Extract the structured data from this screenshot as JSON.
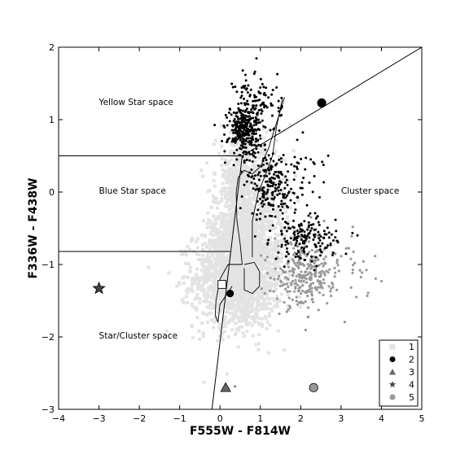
{
  "chart_data": {
    "type": "scatter",
    "xlabel": "F555W - F814W",
    "ylabel": "F336W - F438W",
    "xlim": [
      -4,
      5
    ],
    "ylim": [
      -3,
      2
    ],
    "x_ticks": [
      -4,
      -3,
      -2,
      -1,
      0,
      1,
      2,
      3,
      4,
      5
    ],
    "y_ticks": [
      -3,
      -2,
      -1,
      0,
      1,
      2
    ],
    "x_tick_labels": [
      "−4",
      "−3",
      "−2",
      "−1",
      "0",
      "1",
      "2",
      "3",
      "4",
      "5"
    ],
    "y_tick_labels": [
      "−3",
      "−2",
      "−1",
      "0",
      "1",
      "2"
    ],
    "grid": false,
    "legend_position": "bottom-right",
    "legend": [
      {
        "label": "1",
        "marker": "square",
        "color": "#e3e3e3"
      },
      {
        "label": "2",
        "marker": "circle",
        "color": "#000000"
      },
      {
        "label": "3",
        "marker": "triangle",
        "color": "#666666"
      },
      {
        "label": "4",
        "marker": "star",
        "color": "#444444"
      },
      {
        "label": "5",
        "marker": "circle",
        "color": "#999999"
      }
    ],
    "region_labels": [
      {
        "text": "Yellow Star space",
        "x": -3.0,
        "y": 1.25
      },
      {
        "text": "Blue Star space",
        "x": -3.0,
        "y": 0.02
      },
      {
        "text": "Cluster space",
        "x": 3.0,
        "y": 0.02
      },
      {
        "text": "Star/Cluster space",
        "x": -3.0,
        "y": -1.98
      }
    ],
    "boundary_lines": [
      {
        "name": "yellow-blue-boundary",
        "points": [
          [
            -4,
            0.5
          ],
          [
            0.55,
            0.5
          ]
        ]
      },
      {
        "name": "blue-starcluster-boundary",
        "points": [
          [
            -4,
            -0.82
          ],
          [
            0.25,
            -0.82
          ]
        ]
      },
      {
        "name": "star-cluster-diagonal",
        "points": [
          [
            -0.2,
            -3.0
          ],
          [
            0.55,
            0.5
          ]
        ]
      },
      {
        "name": "cluster-upper-boundary",
        "points": [
          [
            0.55,
            0.5
          ],
          [
            5,
            2
          ]
        ]
      }
    ],
    "series": [
      {
        "name": "1",
        "marker": "square",
        "color": "#e3e3e3",
        "clouds": [
          {
            "cx": 0.45,
            "cy": -1.2,
            "sx": 0.55,
            "sy": 0.34,
            "n": 1500
          },
          {
            "cx": 0.55,
            "cy": -0.6,
            "sx": 0.42,
            "sy": 0.33,
            "n": 800
          },
          {
            "cx": 0.5,
            "cy": 0.15,
            "sx": 0.3,
            "sy": 0.32,
            "n": 450
          },
          {
            "cx": 1.1,
            "cy": -0.2,
            "sx": 0.35,
            "sy": 0.4,
            "n": 220
          }
        ]
      },
      {
        "name": "2",
        "marker": "dot",
        "color": "#000000",
        "clouds": [
          {
            "cx": 0.6,
            "cy": 0.85,
            "sx": 0.2,
            "sy": 0.18,
            "n": 300
          },
          {
            "cx": 0.95,
            "cy": 1.25,
            "sx": 0.3,
            "sy": 0.22,
            "n": 100
          },
          {
            "cx": 1.3,
            "cy": 0.05,
            "sx": 0.3,
            "sy": 0.22,
            "n": 180
          },
          {
            "cx": 2.1,
            "cy": -0.65,
            "sx": 0.4,
            "sy": 0.15,
            "n": 170
          },
          {
            "cx": 1.9,
            "cy": 0.3,
            "sx": 0.5,
            "sy": 0.3,
            "n": 40
          }
        ],
        "highlight": [
          {
            "x": 2.52,
            "y": 1.23,
            "size": "large"
          },
          {
            "x": 0.25,
            "y": -1.4,
            "size": "medium"
          }
        ]
      },
      {
        "name": "3",
        "marker": "triangle",
        "color": "#666666",
        "points": [
          {
            "x": 0.14,
            "y": -2.7
          },
          {
            "x": 0.37,
            "y": -2.68,
            "size": "small"
          }
        ]
      },
      {
        "name": "4",
        "marker": "star",
        "color": "#444444",
        "points": [
          {
            "x": -3.0,
            "y": -1.33
          }
        ]
      },
      {
        "name": "5",
        "marker": "circle",
        "color": "#999999",
        "clouds": [
          {
            "cx": 2.05,
            "cy": -1.15,
            "sx": 0.35,
            "sy": 0.22,
            "n": 220
          },
          {
            "cx": 2.7,
            "cy": -1.1,
            "sx": 0.5,
            "sy": 0.25,
            "n": 90
          }
        ],
        "points": [
          {
            "x": 2.32,
            "y": -2.7,
            "size": "large"
          }
        ]
      }
    ],
    "track_lines": [
      [
        [
          1.6,
          1.31
        ],
        [
          1.2,
          0.6
        ],
        [
          1.0,
          0.35
        ],
        [
          0.8,
          0.25
        ],
        [
          0.6,
          0.3
        ],
        [
          0.45,
          0.2
        ],
        [
          0.4,
          0.0
        ],
        [
          0.42,
          -0.4
        ],
        [
          0.5,
          -0.72
        ],
        [
          0.55,
          -1.0
        ]
      ],
      [
        [
          1.55,
          1.3
        ],
        [
          1.4,
          0.9
        ],
        [
          1.3,
          0.5
        ],
        [
          1.1,
          0.2
        ],
        [
          0.95,
          0.0
        ],
        [
          0.8,
          -0.4
        ],
        [
          0.8,
          -0.9
        ]
      ],
      [
        [
          0.55,
          -1.0
        ],
        [
          0.2,
          -1.0
        ],
        [
          0.0,
          -1.2
        ],
        [
          -0.1,
          -1.5
        ],
        [
          -0.12,
          -1.7
        ],
        [
          -0.05,
          -1.8
        ],
        [
          0.0,
          -1.55
        ],
        [
          0.3,
          -1.3
        ]
      ],
      [
        [
          0.6,
          -1.0
        ],
        [
          0.85,
          -0.97
        ],
        [
          0.98,
          -1.1
        ],
        [
          0.98,
          -1.3
        ],
        [
          0.8,
          -1.4
        ],
        [
          0.6,
          -1.35
        ],
        [
          0.6,
          -1.05
        ]
      ]
    ],
    "box_markers": [
      {
        "x0": -0.05,
        "x1": 0.15,
        "y0": -1.33,
        "y1": -1.22
      }
    ]
  }
}
